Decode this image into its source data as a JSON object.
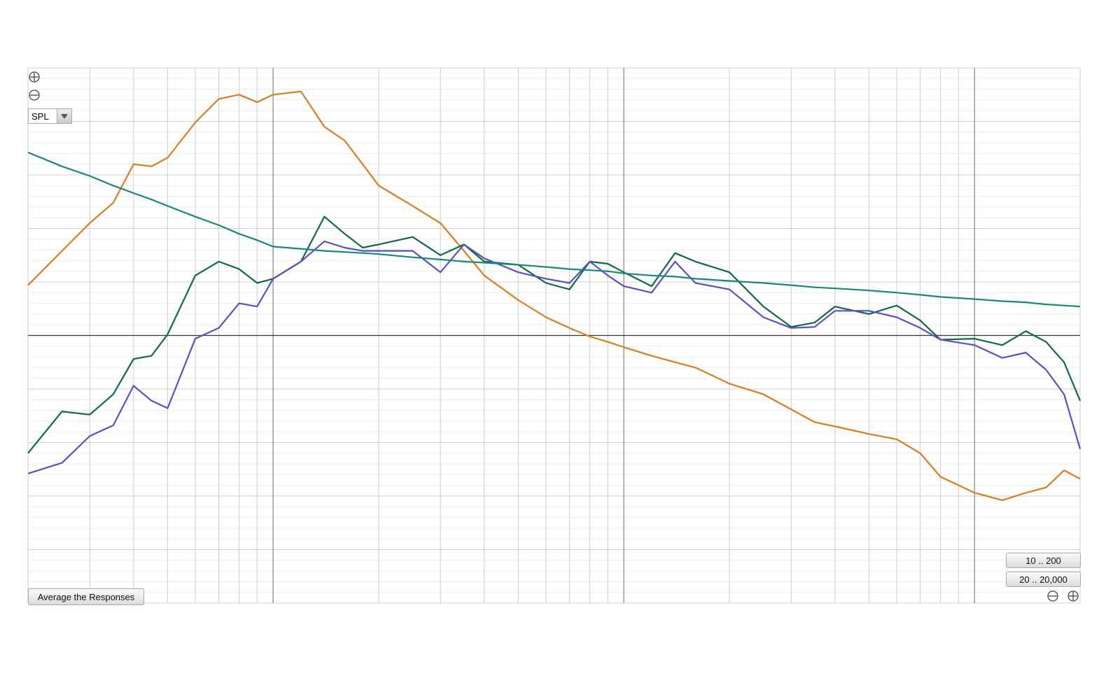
{
  "toolbar": {
    "view": "SPL",
    "average_button": "Average the Responses",
    "range_buttons": [
      "10 .. 200",
      "20 .. 20,000"
    ]
  },
  "chart_data": {
    "type": "line",
    "log_x": true,
    "grid": true,
    "xlim": [
      20,
      20000
    ],
    "xticks": [
      20,
      30,
      40,
      50,
      60,
      70,
      80,
      90,
      100,
      200,
      300,
      400,
      500,
      600,
      700,
      800,
      900,
      1000,
      2000,
      3000,
      4000,
      5000,
      6000,
      7000,
      8000,
      9000,
      10000,
      20000
    ],
    "ylim": [
      50,
      100
    ],
    "yticks": [
      50,
      51,
      52,
      53,
      54,
      55,
      56,
      57,
      58,
      59,
      60,
      61,
      62,
      63,
      64,
      65,
      66,
      67,
      68,
      69,
      70,
      71,
      72,
      73,
      74,
      75,
      76,
      77,
      78,
      79,
      80,
      81,
      82,
      83,
      84,
      85,
      86,
      87,
      88,
      89,
      90,
      91,
      92,
      93,
      94,
      95,
      96,
      97,
      98,
      99,
      100
    ],
    "reference_line": 75,
    "x": [
      20,
      25,
      30,
      35,
      40,
      45,
      50,
      60,
      70,
      80,
      90,
      100,
      120,
      140,
      160,
      180,
      200,
      250,
      300,
      350,
      400,
      500,
      600,
      700,
      800,
      900,
      1000,
      1200,
      1400,
      1600,
      2000,
      2500,
      3000,
      3500,
      4000,
      5000,
      6000,
      7000,
      8000,
      10000,
      12000,
      14000,
      16000,
      18000,
      20000
    ],
    "series": [
      {
        "color": "#e07b1a",
        "values": [
          79.7,
          82.9,
          85.5,
          87.4,
          91.0,
          90.8,
          91.6,
          94.9,
          97.1,
          97.5,
          96.8,
          97.5,
          97.8,
          94.5,
          93.2,
          91.0,
          89.0,
          87.1,
          85.5,
          82.9,
          80.6,
          78.3,
          76.7,
          75.7,
          74.9,
          74.4,
          73.9,
          73.1,
          72.5,
          72.0,
          70.5,
          69.5,
          68.1,
          66.9,
          66.5,
          65.8,
          65.3,
          64.0,
          61.8,
          60.3,
          59.6,
          60.3,
          60.8,
          62.4,
          61.6
        ]
      },
      {
        "color": "#0b6b45",
        "values": [
          64.0,
          67.9,
          67.6,
          69.5,
          72.8,
          73.1,
          75.1,
          80.6,
          81.9,
          81.2,
          79.9,
          80.3,
          81.9,
          86.1,
          84.5,
          83.2,
          83.5,
          84.2,
          82.5,
          83.5,
          81.9,
          81.6,
          79.9,
          79.3,
          81.9,
          81.7,
          80.9,
          79.6,
          82.7,
          81.9,
          80.9,
          77.7,
          75.8,
          76.2,
          77.7,
          77.0,
          77.8,
          76.4,
          74.6,
          74.7,
          74.1,
          75.4,
          74.4,
          72.5,
          68.9
        ]
      },
      {
        "color": "#5a4fc8",
        "values": [
          62.1,
          63.1,
          65.6,
          66.6,
          70.3,
          68.9,
          68.2,
          74.7,
          75.7,
          78.0,
          77.7,
          80.3,
          81.9,
          83.8,
          83.2,
          82.9,
          82.9,
          82.9,
          80.9,
          83.5,
          82.2,
          80.9,
          80.3,
          79.9,
          81.9,
          80.6,
          79.6,
          79.0,
          81.9,
          79.9,
          79.3,
          76.7,
          75.7,
          75.8,
          77.3,
          77.3,
          76.7,
          75.7,
          74.6,
          74.1,
          72.9,
          73.4,
          71.8,
          69.5,
          64.4
        ]
      },
      {
        "color": "#138a80",
        "values": [
          92.1,
          90.8,
          89.9,
          89.0,
          88.3,
          87.7,
          87.1,
          86.1,
          85.3,
          84.5,
          83.9,
          83.3,
          83.1,
          82.9,
          82.8,
          82.7,
          82.6,
          82.3,
          82.1,
          81.9,
          81.8,
          81.6,
          81.4,
          81.2,
          81.1,
          81.0,
          80.8,
          80.6,
          80.5,
          80.3,
          80.1,
          79.9,
          79.7,
          79.5,
          79.4,
          79.2,
          79.0,
          78.8,
          78.6,
          78.4,
          78.2,
          78.1,
          77.9,
          77.8,
          77.7
        ]
      }
    ]
  }
}
